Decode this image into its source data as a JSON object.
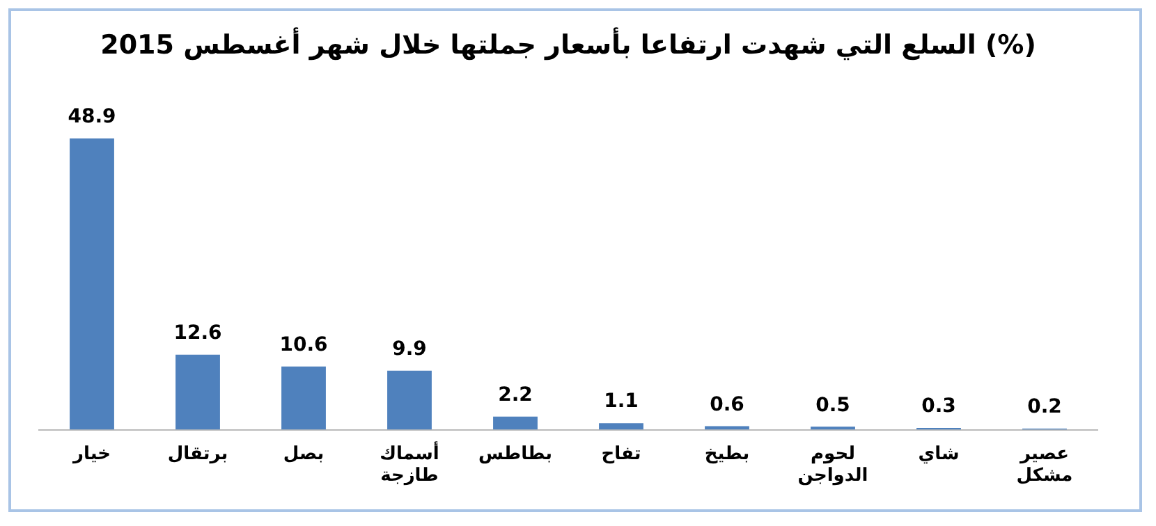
{
  "chart_data": {
    "type": "bar",
    "title": "السلع التي شهدت ارتفاعا بأسعار جملتها خلال شهر أغسطس 2015 (%)",
    "categories": [
      "خيار",
      "برتقال",
      "بصل",
      "أسماك طازجة",
      "بطاطس",
      "تفاح",
      "بطيخ",
      "لحوم الدواجن",
      "شاي",
      "عصير مشكل"
    ],
    "values": [
      48.9,
      12.6,
      10.6,
      9.9,
      2.2,
      1.1,
      0.6,
      0.5,
      0.3,
      0.2
    ],
    "color": "#4f81bd",
    "data_labels": true,
    "grid": false,
    "legend": false
  }
}
